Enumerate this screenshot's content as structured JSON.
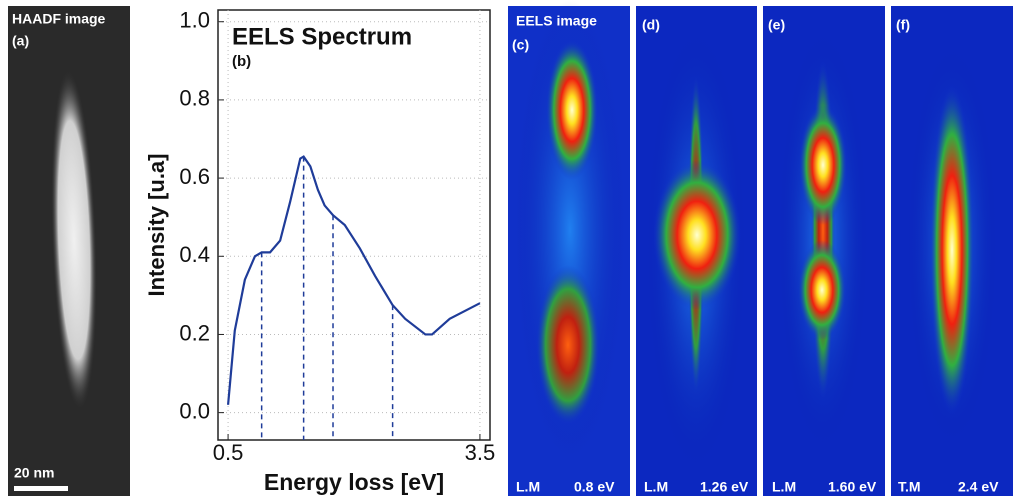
{
  "chart_data": {
    "type": "line",
    "title": "EELS Spectrum",
    "label": "(b)",
    "x_label": "Energy loss [eV]",
    "y_label": "Intensity [u.a]",
    "x": [
      0.5,
      0.58,
      0.7,
      0.82,
      0.9,
      1.0,
      1.12,
      1.24,
      1.36,
      1.4,
      1.48,
      1.57,
      1.65,
      1.75,
      1.89,
      2.07,
      2.25,
      2.46,
      2.61,
      2.85,
      2.93,
      3.14,
      3.5
    ],
    "values": [
      0.02,
      0.21,
      0.34,
      0.4,
      0.41,
      0.41,
      0.44,
      0.54,
      0.65,
      0.655,
      0.63,
      0.57,
      0.53,
      0.505,
      0.48,
      0.42,
      0.35,
      0.275,
      0.24,
      0.2,
      0.2,
      0.24,
      0.28
    ],
    "color": "#1f3c99",
    "markers": [
      {
        "x": 0.9,
        "y": 0.41
      },
      {
        "x": 1.4,
        "y": 0.655
      },
      {
        "x": 1.75,
        "y": 0.505
      },
      {
        "x": 2.46,
        "y": 0.275
      }
    ],
    "xlim": [
      0.38,
      3.62
    ],
    "xticks": [
      0.5,
      3.5
    ],
    "ylim": [
      -0.07,
      1.03
    ],
    "yticks": [
      {
        "value": 0,
        "label": "0.0"
      },
      0.2,
      0.4,
      0.6,
      0.8,
      {
        "value": 1,
        "label": "1.0"
      }
    ],
    "grid": true
  },
  "panels": [
    {
      "title": "HAADF image",
      "label": "(a)",
      "scale": "20 nm"
    },
    {
      "title": "EELS image",
      "label": "(c)",
      "mode": "L.M",
      "energy": "0.8 eV"
    },
    {
      "label": "(d)",
      "mode": "L.M",
      "energy": "1.26 eV"
    },
    {
      "label": "(e)",
      "mode": "L.M",
      "energy": "1.60 eV"
    },
    {
      "label": "(f)",
      "mode": "T.M",
      "energy": "2.4 eV"
    }
  ]
}
